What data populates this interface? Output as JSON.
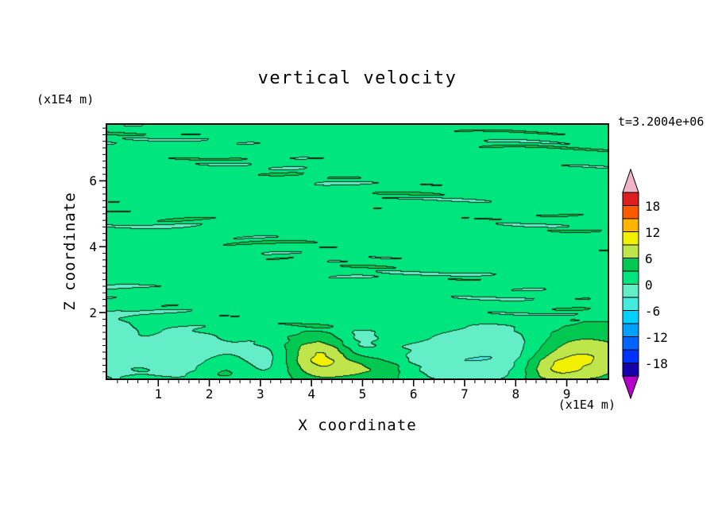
{
  "header": {
    "title": "vertical velocity",
    "time_label": "t=3.2004e+06"
  },
  "axes": {
    "x_label": "X coordinate",
    "x_unit": "(x1E4 m)",
    "y_label": "Z coordinate",
    "y_unit": "(x1E4 m)",
    "x_ticks": [
      1,
      2,
      3,
      4,
      5,
      6,
      7,
      8,
      9
    ],
    "y_ticks": [
      2,
      4,
      6
    ],
    "x_range": [
      0,
      9.8
    ],
    "y_range": [
      0,
      7.7
    ],
    "minor_tick_step": 0.2
  },
  "colorbar": {
    "labels": [
      "18",
      "12",
      "6",
      "0",
      "-6",
      "-12",
      "-18"
    ],
    "over_color": "#f0b4c8",
    "under_color": "#b400c8",
    "segment_colors_bottom_to_top": [
      "#1400aa",
      "#0032ff",
      "#0064ff",
      "#00a0ff",
      "#00d2ff",
      "#46ebdc",
      "#64eec8",
      "#00e57d",
      "#00c850",
      "#bee64b",
      "#f0f000",
      "#ffb400",
      "#ff5a00",
      "#dc1e1e"
    ]
  },
  "chart_data": {
    "type": "heatmap",
    "render_style": "filled-contour",
    "title": "vertical velocity",
    "xlabel": "X coordinate (x1E4 m)",
    "ylabel": "Z coordinate (x1E4 m)",
    "annotations": [
      "t=3.2004e+06"
    ],
    "x_range": [
      0,
      9.8
    ],
    "y_range": [
      0,
      7.7
    ],
    "contour_interval": 3,
    "levels": [
      -21,
      -18,
      -15,
      -12,
      -9,
      -6,
      -3,
      0,
      3,
      6,
      9,
      12,
      15,
      18,
      21
    ],
    "field": {
      "base": 1.35,
      "streak_fade_z": [
        1.25,
        2.15
      ],
      "streak_min": 0.22,
      "streaks": [
        {
          "amp": 1.05,
          "kz": 15.5,
          "ph": 0.4,
          "wob": 1.7,
          "kx": 0.95,
          "xph": 1.3,
          "zsl": 1.2
        },
        {
          "amp": 0.85,
          "kz": 26.0,
          "ph": 2.2,
          "wob": 2.4,
          "kx": 1.45,
          "xph": 4.1,
          "zsl": 2.0
        },
        {
          "amp": 0.65,
          "kz": 9.5,
          "ph": 5.1,
          "wob": 1.2,
          "kx": 0.6,
          "xph": 2.4,
          "zsl": 0.7
        }
      ],
      "mod": {
        "a0": 0.58,
        "a1": 0.42,
        "kx": 0.85,
        "kz": 2.6,
        "ph": 0.9
      },
      "bumps": [
        {
          "x": 0.12,
          "z": 1.0,
          "sx": 0.3,
          "sz": 0.8,
          "a": -3.2
        },
        {
          "x": 1.45,
          "z": 0.75,
          "sx": 0.55,
          "sz": 0.5,
          "a": -4.3
        },
        {
          "x": 2.35,
          "z": 0.3,
          "sx": 0.45,
          "sz": 0.3,
          "a": 3.6
        },
        {
          "x": 3.05,
          "z": 0.55,
          "sx": 0.5,
          "sz": 0.42,
          "a": -4.1
        },
        {
          "x": 4.15,
          "z": 0.62,
          "sx": 0.55,
          "sz": 0.5,
          "a": 8.6
        },
        {
          "x": 4.9,
          "z": 1.05,
          "sx": 0.33,
          "sz": 0.38,
          "a": -3.6
        },
        {
          "x": 5.3,
          "z": 0.28,
          "sx": 0.5,
          "sz": 0.33,
          "a": 4.2
        },
        {
          "x": 6.2,
          "z": 0.55,
          "sx": 0.55,
          "sz": 0.4,
          "a": -2.4
        },
        {
          "x": 7.7,
          "z": 0.75,
          "sx": 0.85,
          "sz": 0.6,
          "a": -4.6
        },
        {
          "x": 9.3,
          "z": 0.65,
          "sx": 0.75,
          "sz": 0.6,
          "a": 8.2
        },
        {
          "x": 8.65,
          "z": 0.3,
          "sx": 0.4,
          "sz": 0.3,
          "a": 4.5
        }
      ]
    }
  }
}
